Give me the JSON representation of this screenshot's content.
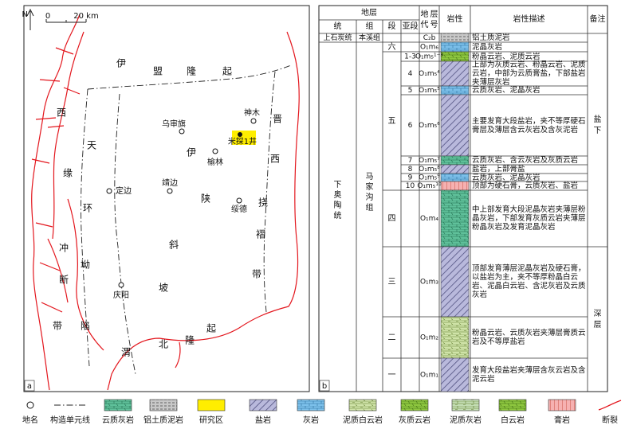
{
  "map": {
    "panel": "a",
    "north": "N",
    "scale": [
      "0",
      "20 km"
    ],
    "regions": [
      "伊盟隆起",
      "西缘冲断带",
      "天环坳陷",
      "伊陕斜坡",
      "晋西挠褶带",
      "渭北隆起"
    ],
    "places": [
      "乌审旗",
      "神木",
      "米探1井",
      "榆林",
      "靖边",
      "定边",
      "绥德",
      "庆阳"
    ]
  },
  "column": {
    "panel": "b",
    "header": {
      "strata": "地层",
      "series": "统",
      "formation": "组",
      "member": "段",
      "submember": "亚段",
      "code": "地层代号",
      "lithology": "岩性",
      "description": "岩性描述",
      "remark": "备注"
    },
    "series": [
      "上石炭统",
      "下奥陶统"
    ],
    "formations": [
      "本溪组",
      "马家沟组"
    ],
    "members": [
      "六",
      "五",
      "四",
      "三",
      "二",
      "一"
    ],
    "remarks": [
      "盐下",
      "深层"
    ],
    "rows": [
      {
        "code": "C₂b",
        "description": "铝土质泥岩"
      },
      {
        "code": "O₁m₆",
        "description": "泥晶灰岩"
      },
      {
        "submember": "1-3",
        "code": "O₁m₅¹⁻³",
        "description": "粉晶云岩、泥质云岩"
      },
      {
        "submember": "4",
        "code": "O₁m₅⁴",
        "description": "上部为灰质云岩、粉晶云岩、泥质云岩，中部为云质膏盐，下部盐岩夹薄层灰岩"
      },
      {
        "submember": "5",
        "code": "O₁m₅⁵",
        "description": "云质灰岩、泥晶灰岩"
      },
      {
        "submember": "6",
        "code": "O₁m₅⁶",
        "description": "主要发育大段盐岩，夹不等厚硬石膏层及薄层含云灰岩及含灰泥岩"
      },
      {
        "submember": "7",
        "code": "O₁m₅⁷",
        "description": "云质灰岩、含云灰岩及灰质云岩"
      },
      {
        "submember": "8",
        "code": "O₁m₅⁸",
        "description": "盐岩，上部膏盐"
      },
      {
        "submember": "9",
        "code": "O₁m₅⁹",
        "description": "云质灰岩、泥晶灰岩"
      },
      {
        "submember": "10",
        "code": "O₁m₅¹⁰",
        "description": "顶部为硬石膏，云质灰岩、盐岩"
      },
      {
        "code": "O₁m₄",
        "description": "中上部发育大段泥晶灰岩夹薄层粉晶灰岩，下部发育灰质云岩夹薄层粉晶灰岩及发育泥晶灰岩"
      },
      {
        "code": "O₁m₃",
        "description": "顶部发育薄层泥晶灰岩及硬石膏，以盐岩为主，夹不等厚粉晶白云岩、泥晶白云岩、含泥灰岩及云质灰岩"
      },
      {
        "code": "O₁m₂",
        "description": "粉晶云岩、云质灰岩夹薄层膏质云岩及不等厚盐岩"
      },
      {
        "code": "O₁m₁",
        "description": "发育大段盐岩夹薄层含灰云岩及含泥云岩"
      }
    ]
  },
  "legend": [
    "地名",
    "构造单元线",
    "云质灰岩",
    "铝土质泥岩",
    "研究区",
    "盐岩",
    "灰岩",
    "泥质白云岩",
    "灰质云岩",
    "泥质灰岩",
    "白云岩",
    "膏岩",
    "断裂"
  ]
}
